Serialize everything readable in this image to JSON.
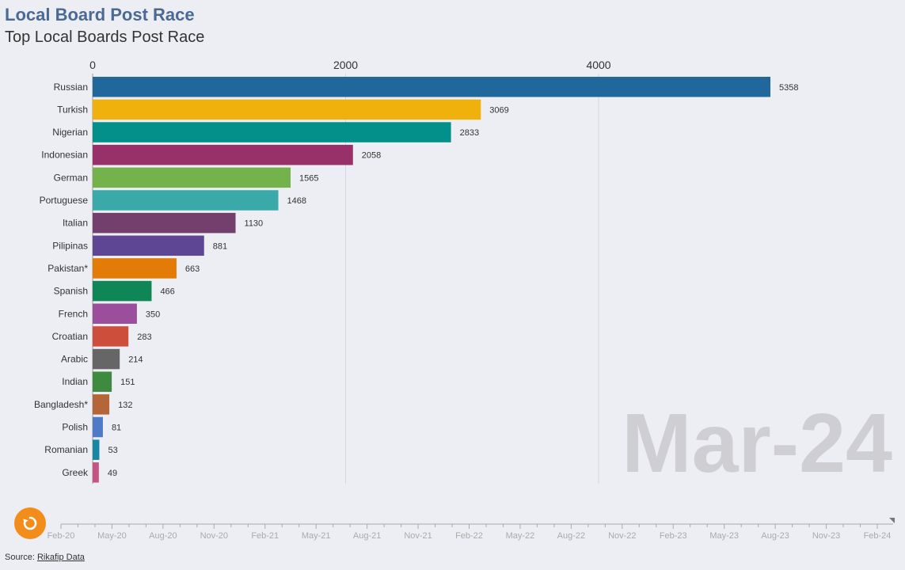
{
  "header": {
    "title": "Local Board Post Race",
    "subtitle": "Top Local Boards Post Race"
  },
  "current_date": "Mar-24",
  "chart_data": {
    "type": "bar",
    "title": "Local Board Post Race",
    "subtitle": "Top Local Boards Post Race",
    "orientation": "horizontal",
    "xlim": [
      0,
      5358
    ],
    "x_ticks": [
      "0",
      "2000",
      "4000"
    ],
    "grid": true,
    "categories": [
      "Russian",
      "Turkish",
      "Nigerian",
      "Indonesian",
      "German",
      "Portuguese",
      "Italian",
      "Pilipinas",
      "Pakistan*",
      "Spanish",
      "French",
      "Croatian",
      "Arabic",
      "Indian",
      "Bangladesh*",
      "Polish",
      "Romanian",
      "Greek"
    ],
    "values": [
      5358,
      3069,
      2833,
      2058,
      1565,
      1468,
      1130,
      881,
      663,
      466,
      350,
      283,
      214,
      151,
      132,
      81,
      53,
      49
    ],
    "colors": [
      "#20689b",
      "#f0b10c",
      "#038f8a",
      "#983069",
      "#74b24c",
      "#3aa9a9",
      "#73406d",
      "#5e4695",
      "#e27c06",
      "#0e8656",
      "#9b4e9b",
      "#ce4e3c",
      "#666666",
      "#3e8a3e",
      "#b46638",
      "#4e7ac8",
      "#1686a4",
      "#c65383"
    ]
  },
  "timeline": {
    "labels": [
      "Feb-20",
      "May-20",
      "Aug-20",
      "Nov-20",
      "Feb-21",
      "May-21",
      "Aug-21",
      "Nov-21",
      "Feb-22",
      "May-22",
      "Aug-22",
      "Nov-22",
      "Feb-23",
      "May-23",
      "Aug-23",
      "Nov-23",
      "Feb-24"
    ]
  },
  "replay": {
    "icon": "replay-icon",
    "color": "#f28c1a"
  },
  "source": {
    "prefix": "Source: ",
    "link": "Rikafip Data"
  }
}
